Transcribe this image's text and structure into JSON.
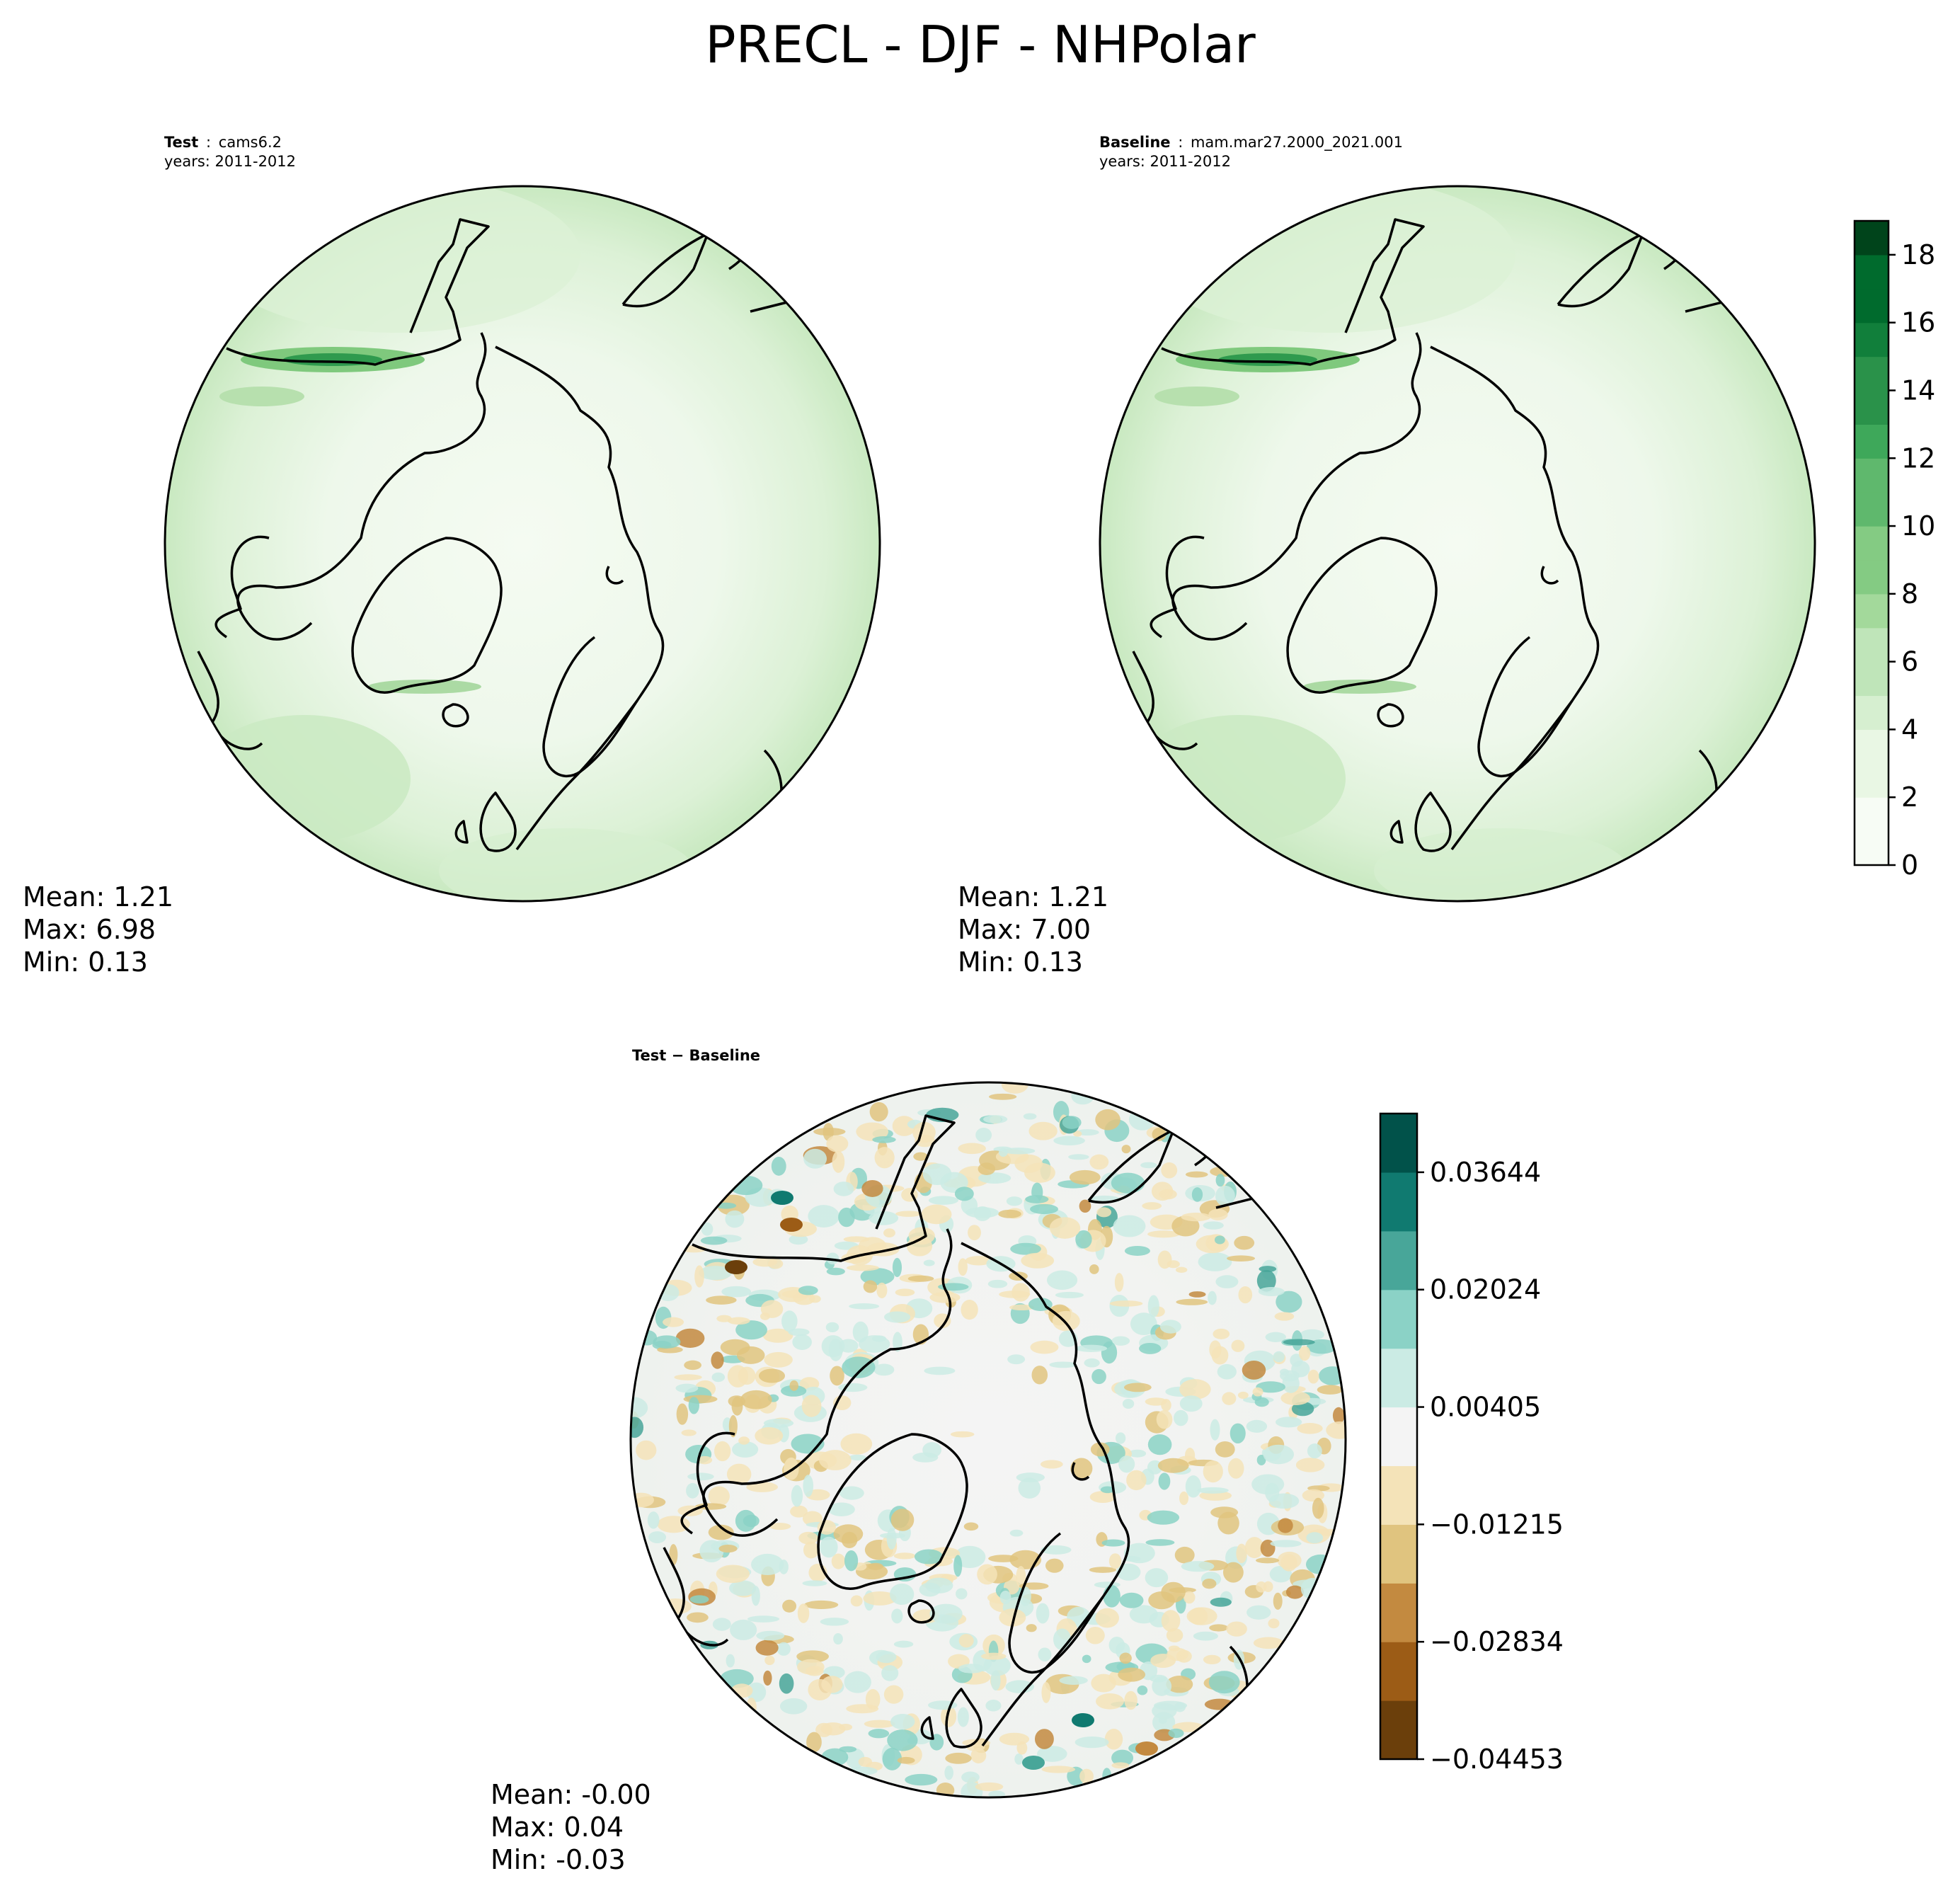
{
  "title": "PRECL - DJF - NHPolar",
  "panels": [
    {
      "id": "test",
      "label_bold": "Test",
      "label_sep": ":",
      "label_text": "cams6.2",
      "years": "years: 2011-2012",
      "stats": {
        "mean": "Mean:  1.21",
        "max": "Max:  6.98",
        "min": "Min:  0.13"
      }
    },
    {
      "id": "baseline",
      "label_bold": "Baseline",
      "label_sep": ":",
      "label_text": "mam.mar27.2000_2021.001",
      "years": "years: 2011-2012",
      "stats": {
        "mean": "Mean:  1.21",
        "max": "Max:  7.00",
        "min": "Min:  0.13"
      }
    },
    {
      "id": "diff",
      "label_bold": "Test − Baseline",
      "stats": {
        "mean": "Mean: -0.00",
        "max": "Max:  0.04",
        "min": "Min: -0.03"
      }
    }
  ],
  "chart_data": [
    {
      "type": "heatmap",
      "projection": "north-polar-stereographic",
      "panel": "test",
      "mean": 1.21,
      "max": 6.98,
      "min": 0.13,
      "colormap": "Greens",
      "colorbar_range": [
        0,
        19
      ],
      "colorbar_ticks": [
        "0",
        "2",
        "4",
        "6",
        "8",
        "10",
        "12",
        "14",
        "16",
        "18"
      ]
    },
    {
      "type": "heatmap",
      "projection": "north-polar-stereographic",
      "panel": "baseline",
      "mean": 1.21,
      "max": 7.0,
      "min": 0.13,
      "colormap": "Greens",
      "colorbar_range": [
        0,
        19
      ],
      "colorbar_ticks": [
        "0",
        "2",
        "4",
        "6",
        "8",
        "10",
        "12",
        "14",
        "16",
        "18"
      ]
    },
    {
      "type": "heatmap",
      "projection": "north-polar-stereographic",
      "panel": "diff",
      "mean": -0.0,
      "max": 0.04,
      "min": -0.03,
      "colormap": "BrBG",
      "colorbar_ticks": [
        "−0.04453",
        "−0.02834",
        "−0.01215",
        "0.00405",
        "0.02024",
        "0.03644"
      ]
    }
  ],
  "colors": {
    "greens": [
      "#f7fcf5",
      "#e9f7e4",
      "#d6efd0",
      "#bfe5b9",
      "#a3d99b",
      "#84cb83",
      "#5fb86d",
      "#3ea85a",
      "#2a924a",
      "#117f3b",
      "#006b2d",
      "#00441b"
    ],
    "brbg": [
      "#6b3f0b",
      "#9c5c16",
      "#c38a40",
      "#e0c47f",
      "#f4e3b8",
      "#f4f4f4",
      "#cbebe4",
      "#8bd2c6",
      "#48a699",
      "#107a70",
      "#01524a"
    ]
  }
}
